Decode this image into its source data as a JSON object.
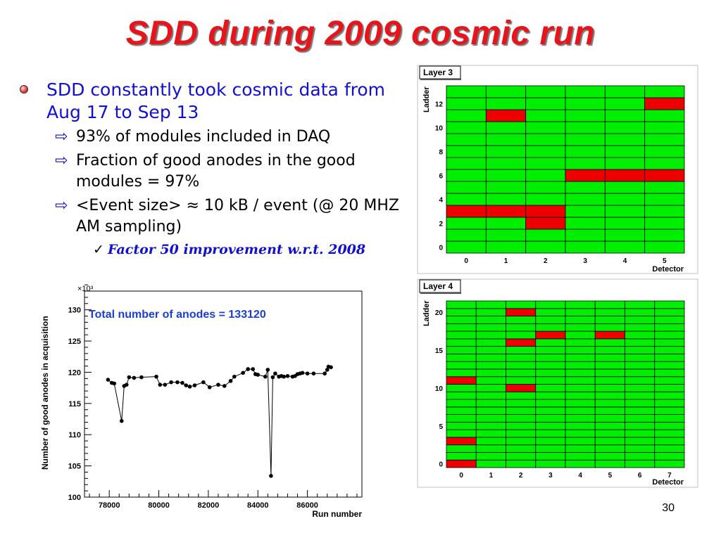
{
  "slide": {
    "title": "SDD during 2009 cosmic run",
    "page_number": "30"
  },
  "bullets": {
    "main": "SDD constantly took cosmic data from Aug 17 to Sep 13",
    "subs": [
      "93% of modules included in DAQ",
      "Fraction of good anodes in the good modules = 97%",
      "<Event size> ≈ 10 kB / event (@ 20 MHZ AM sampling)"
    ],
    "subsub": "Factor 50 improvement w.r.t. 2008",
    "bullet_icon": "red-sphere-bullet",
    "arrow_icon": "hollow-right-arrow",
    "check_icon": "checkmark"
  },
  "colors": {
    "title": "#e8141b",
    "bullet_text": "#1010d0",
    "good_cell": "#00ee00",
    "bad_cell": "#ee0000"
  },
  "chart_data": [
    {
      "type": "line",
      "annotation": "Total number of anodes = 133120",
      "xlabel": "Run number",
      "ylabel": "Number of good anodes in acquisition",
      "y_multiplier": "×10³",
      "xlim": [
        77000,
        88200
      ],
      "ylim": [
        100,
        133
      ],
      "x_ticks": [
        "78000",
        "80000",
        "82000",
        "84000",
        "86000"
      ],
      "y_ticks": [
        "100",
        "105",
        "110",
        "115",
        "120",
        "125",
        "130"
      ],
      "x": [
        77950,
        78100,
        78200,
        78500,
        78600,
        78700,
        78800,
        79000,
        79300,
        79900,
        80050,
        80250,
        80500,
        80750,
        80950,
        81100,
        81250,
        81450,
        81800,
        82050,
        82400,
        82650,
        82900,
        83050,
        83400,
        83600,
        83800,
        83900,
        84000,
        84300,
        84400,
        84530,
        84600,
        84700,
        84850,
        84950,
        85050,
        85200,
        85400,
        85500,
        85600,
        85700,
        85800,
        86000,
        86250,
        86700,
        86800,
        86850,
        86950
      ],
      "y": [
        118.8,
        118.3,
        118.2,
        112.2,
        117.8,
        118.0,
        119.2,
        119.1,
        119.2,
        119.3,
        118.0,
        118.0,
        118.4,
        118.4,
        118.3,
        117.9,
        117.7,
        117.9,
        118.4,
        117.6,
        118.0,
        117.8,
        118.6,
        119.3,
        119.9,
        120.5,
        120.5,
        119.7,
        119.6,
        119.3,
        120.4,
        103.4,
        119.2,
        119.8,
        119.3,
        119.4,
        119.3,
        119.4,
        119.3,
        119.4,
        119.7,
        119.8,
        119.9,
        119.8,
        119.8,
        119.8,
        120.4,
        120.9,
        120.8
      ]
    },
    {
      "type": "heatmap",
      "label": "Layer 3",
      "xlabel": "Detector",
      "ylabel": "Ladder",
      "x_ticks": [
        "0",
        "1",
        "2",
        "3",
        "4",
        "5"
      ],
      "y_ticks": [
        "0",
        "2",
        "4",
        "6",
        "8",
        "10",
        "12"
      ],
      "n_detectors": 6,
      "n_ladders": 14,
      "bad_cells": [
        [
          5,
          12
        ],
        [
          1,
          11
        ],
        [
          3,
          6
        ],
        [
          4,
          6
        ],
        [
          5,
          6
        ],
        [
          0,
          3
        ],
        [
          1,
          3
        ],
        [
          2,
          3
        ],
        [
          2,
          2
        ]
      ]
    },
    {
      "type": "heatmap",
      "label": "Layer 4",
      "xlabel": "Detector",
      "ylabel": "Ladder",
      "x_ticks": [
        "0",
        "1",
        "2",
        "3",
        "4",
        "5",
        "6",
        "7"
      ],
      "y_ticks": [
        "0",
        "5",
        "10",
        "15",
        "20"
      ],
      "n_detectors": 8,
      "n_ladders": 22,
      "bad_cells": [
        [
          2,
          20
        ],
        [
          3,
          17
        ],
        [
          5,
          17
        ],
        [
          2,
          16
        ],
        [
          0,
          11
        ],
        [
          2,
          10
        ],
        [
          0,
          3
        ],
        [
          0,
          0
        ]
      ]
    }
  ]
}
